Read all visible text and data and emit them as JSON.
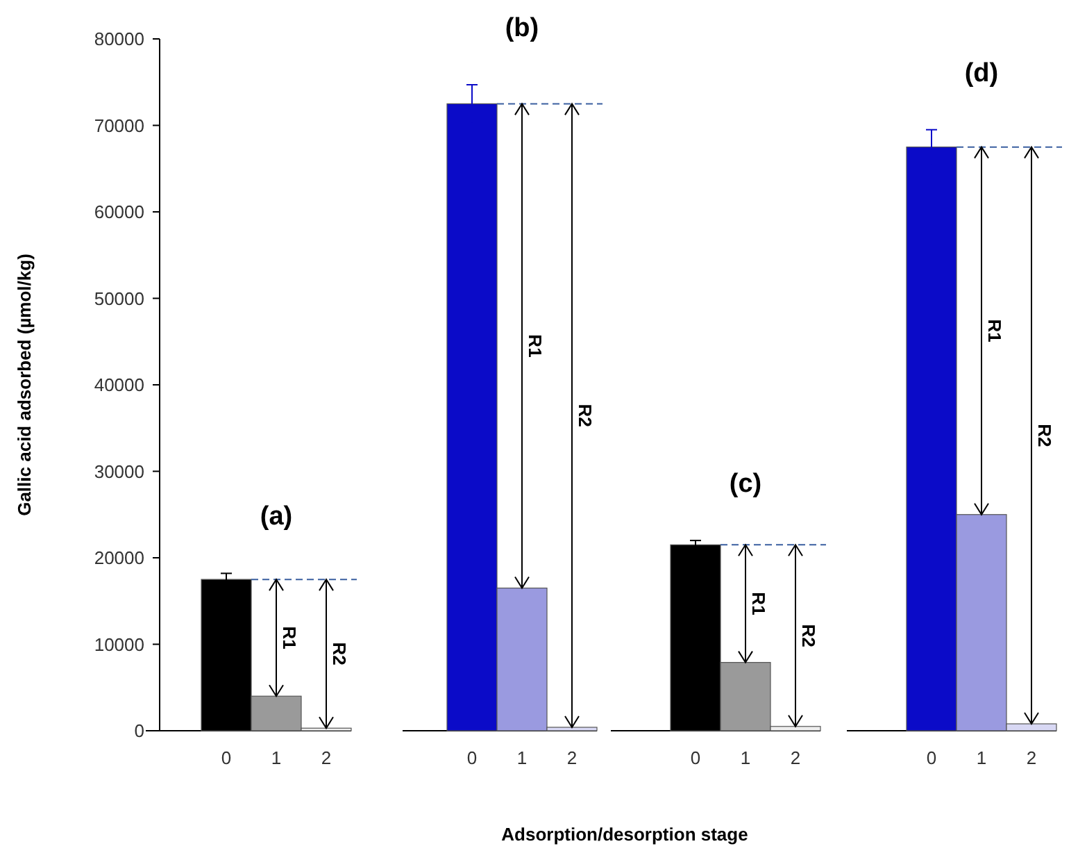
{
  "chart_data": [
    {
      "type": "bar",
      "title": "(a)",
      "ylabel": "Gallic acid adsorbed (µmol/kg)",
      "categories": [
        "0",
        "1",
        "2"
      ],
      "values": [
        17500,
        4000,
        300
      ],
      "colors": [
        "#000000",
        "#9a9a9a",
        "#eeeeee"
      ],
      "errors": [
        700,
        null,
        null
      ],
      "ylim": [
        0,
        80000
      ],
      "yticks": [
        0,
        10000,
        20000,
        30000,
        40000,
        50000,
        60000,
        70000,
        80000
      ],
      "ref_lines": [
        {
          "axis": "y",
          "value": 17500,
          "color": "#3a5fa0",
          "line_style": "dashed"
        }
      ],
      "annotations": [
        "R1",
        "R2"
      ]
    },
    {
      "type": "bar",
      "title": "(b)",
      "categories": [
        "0",
        "1",
        "2"
      ],
      "values": [
        72500,
        16500,
        400
      ],
      "colors": [
        "#0b0bc8",
        "#9a9ae0",
        "#d8d8f4"
      ],
      "errors": [
        2200,
        null,
        null
      ],
      "ylim": [
        0,
        80000
      ],
      "tick_labels": "x",
      "ref_lines": [
        {
          "axis": "y",
          "value": 72500,
          "color": "#3a5fa0",
          "line_style": "dashed"
        }
      ],
      "annotations": [
        "R1",
        "R2"
      ]
    },
    {
      "type": "bar",
      "title": "(c)",
      "xlabel": "Adsorption/desorption stage",
      "categories": [
        "0",
        "1",
        "2"
      ],
      "values": [
        21500,
        7900,
        500
      ],
      "colors": [
        "#000000",
        "#9a9a9a",
        "#eeeeee"
      ],
      "errors": [
        500,
        null,
        null
      ],
      "ylim": [
        0,
        80000
      ],
      "tick_labels": "x",
      "ref_lines": [
        {
          "axis": "y",
          "value": 21500,
          "color": "#3a5fa0",
          "line_style": "dashed"
        }
      ],
      "annotations": [
        "R1",
        "R2"
      ]
    },
    {
      "type": "bar",
      "title": "(d)",
      "categories": [
        "0",
        "1",
        "2"
      ],
      "values": [
        67500,
        25000,
        800
      ],
      "colors": [
        "#0b0bc8",
        "#9a9ae0",
        "#d8d8f4"
      ],
      "errors": [
        2000,
        null,
        null
      ],
      "ylim": [
        0,
        80000
      ],
      "tick_labels": "x",
      "ref_lines": [
        {
          "axis": "y",
          "value": 67500,
          "color": "#3a5fa0",
          "line_style": "dashed"
        }
      ],
      "annotations": [
        "R1",
        "R2"
      ]
    }
  ]
}
